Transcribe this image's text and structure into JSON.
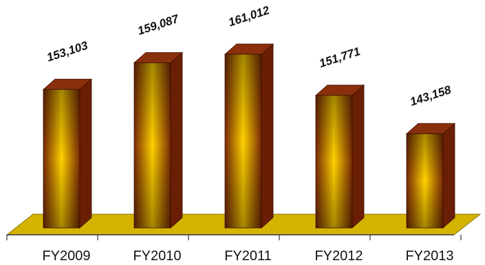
{
  "chart_data": {
    "type": "bar",
    "categories": [
      "FY2009",
      "FY2010",
      "FY2011",
      "FY2012",
      "FY2013"
    ],
    "values": [
      153103,
      159087,
      161012,
      151771,
      143158
    ],
    "value_labels": [
      "153,103",
      "159,087",
      "161,012",
      "151,771",
      "143,158"
    ],
    "title": "",
    "xlabel": "",
    "ylabel": "",
    "style": "3d-cylinder-bars",
    "grid": false,
    "legend": "none"
  },
  "colors": {
    "bar_center": "#ffd200",
    "bar_edge": "#7a2a05",
    "bar_top": "#8a2f0c",
    "bar_side": "#6a1f05",
    "floor": "#d4b400",
    "floor_edge": "#8a7400"
  }
}
